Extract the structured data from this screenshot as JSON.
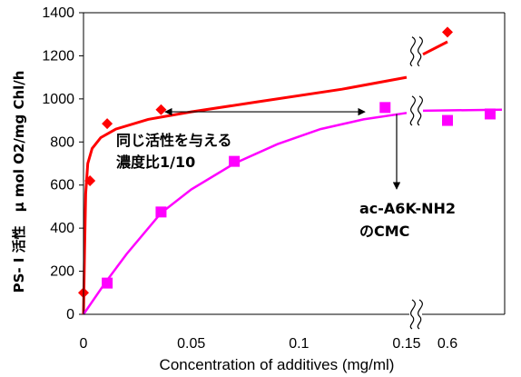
{
  "chart_data": {
    "type": "scatter",
    "title": "",
    "xlabel": "Concentration of additives (mg/ml)",
    "ylabel": "PS- I 活性　μ mol O2/mg Chl/h",
    "x_ticks": [
      "0",
      "0.05",
      "0.1",
      "0.15",
      "0.6"
    ],
    "y_ticks": [
      "0",
      "200",
      "400",
      "600",
      "800",
      "1000",
      "1200",
      "1400"
    ],
    "ylim": [
      0,
      1400
    ],
    "x_axis_break": "between 0.15 and 0.6",
    "grid": false,
    "legend": "none",
    "series": [
      {
        "color": "#ff0000",
        "marker": "diamond",
        "points": [
          {
            "x": 0.0,
            "y": 100
          },
          {
            "x": 0.003,
            "y": 620
          },
          {
            "x": 0.011,
            "y": 885
          },
          {
            "x": 0.036,
            "y": 950
          },
          {
            "x": 0.6,
            "y": 1310
          }
        ]
      },
      {
        "color": "#ff00ff",
        "marker": "square",
        "points": [
          {
            "x": 0.011,
            "y": 145
          },
          {
            "x": 0.036,
            "y": 475
          },
          {
            "x": 0.07,
            "y": 710
          },
          {
            "x": 0.14,
            "y": 960
          },
          {
            "x": 0.6,
            "y": 900
          },
          {
            "x": 0.6,
            "y": 930
          }
        ]
      }
    ],
    "annotations": {
      "same_activity_line1": "同じ活性を与える",
      "same_activity_line2": "濃度比1/10",
      "cmc_line1": "ac-A6K-NH2",
      "cmc_line2": "のCMC"
    }
  }
}
